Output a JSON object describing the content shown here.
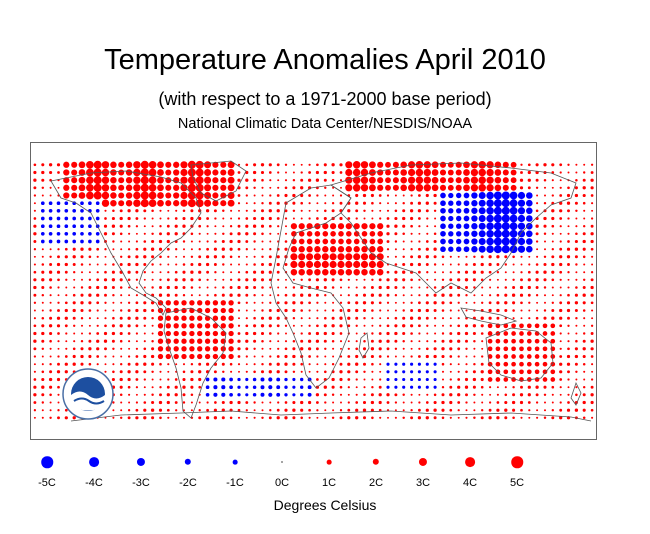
{
  "title": "Temperature Anomalies April 2010",
  "subtitle": "(with respect to a 1971-2000 base period)",
  "source": "National Climatic Data Center/NESDIS/NOAA",
  "logo_text": "NOAA",
  "colors": {
    "warm": "#ff0000",
    "cold": "#0000ff",
    "frame": "#666666",
    "coast": "#555555"
  },
  "legend": {
    "unit_label": "Degrees Celsius",
    "items": [
      {
        "label": "-5C",
        "value": -5
      },
      {
        "label": "-4C",
        "value": -4
      },
      {
        "label": "-3C",
        "value": -3
      },
      {
        "label": "-2C",
        "value": -2
      },
      {
        "label": "-1C",
        "value": -1
      },
      {
        "label": "0C",
        "value": 0
      },
      {
        "label": "1C",
        "value": 1
      },
      {
        "label": "2C",
        "value": 2
      },
      {
        "label": "3C",
        "value": 3
      },
      {
        "label": "4C",
        "value": 4
      },
      {
        "label": "5C",
        "value": 5
      }
    ]
  }
}
